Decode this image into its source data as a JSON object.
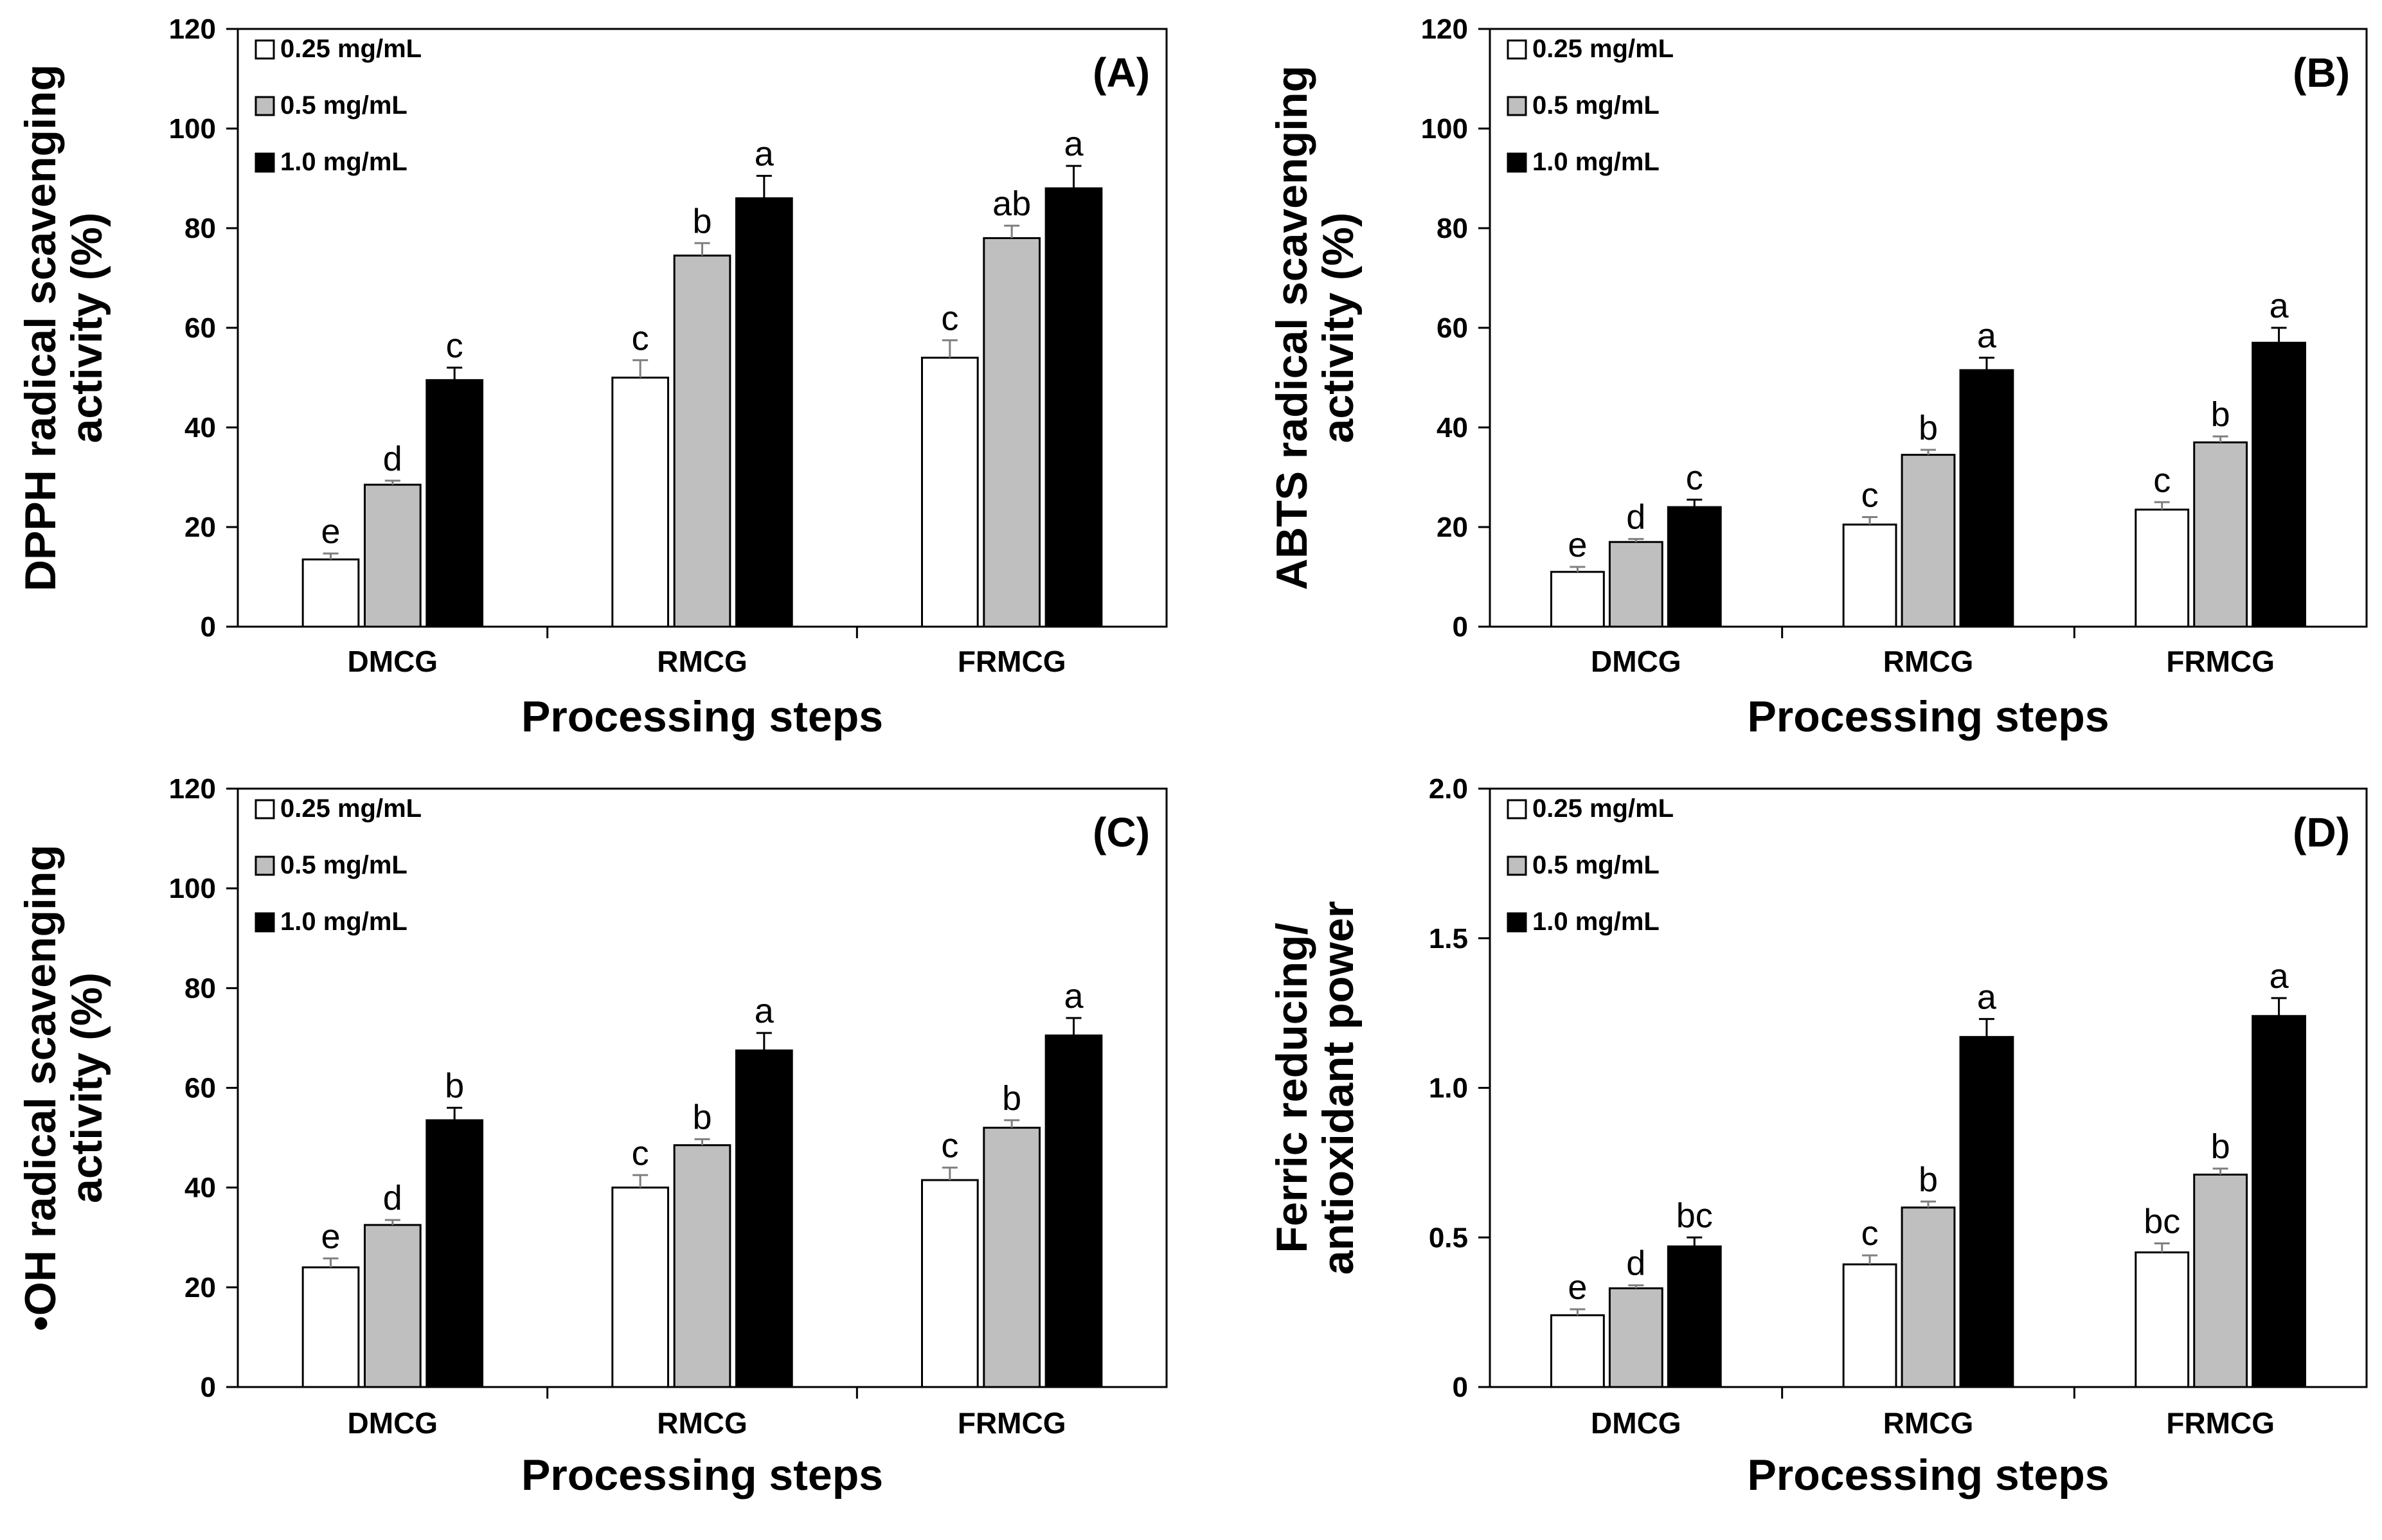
{
  "chart_data": [
    {
      "type": "bar",
      "panel_label": "(A)",
      "title": "",
      "xlabel": "Processing steps",
      "ylabel": [
        "DPPH radical scavenging",
        "activity (%)"
      ],
      "ylim": [
        0,
        120
      ],
      "yticks": [
        0,
        20,
        40,
        60,
        80,
        100,
        120
      ],
      "categories": [
        "DMCG",
        "RMCG",
        "FRMCG"
      ],
      "series": [
        {
          "name": "0.25 mg/mL",
          "color": "#ffffff",
          "values": [
            13.5,
            50.0,
            54.0
          ],
          "errors": [
            1.2,
            3.5,
            3.5
          ],
          "labels": [
            "e",
            "c",
            "c"
          ]
        },
        {
          "name": "0.5 mg/mL",
          "color": "#bfbfbf",
          "values": [
            28.5,
            74.5,
            78.0
          ],
          "errors": [
            0.8,
            2.5,
            2.5
          ],
          "labels": [
            "d",
            "b",
            "ab"
          ]
        },
        {
          "name": "1.0 mg/mL",
          "color": "#000000",
          "values": [
            49.5,
            86.0,
            88.0
          ],
          "errors": [
            2.5,
            4.5,
            4.5
          ],
          "labels": [
            "c",
            "a",
            "a"
          ]
        }
      ],
      "legend": "top-left"
    },
    {
      "type": "bar",
      "panel_label": "(B)",
      "title": "",
      "xlabel": "Processing steps",
      "ylabel": [
        "ABTS radical scavenging",
        "activity (%)"
      ],
      "ylim": [
        0,
        120
      ],
      "yticks": [
        0,
        20,
        40,
        60,
        80,
        100,
        120
      ],
      "categories": [
        "DMCG",
        "RMCG",
        "FRMCG"
      ],
      "series": [
        {
          "name": "0.25 mg/mL",
          "color": "#ffffff",
          "values": [
            11.0,
            20.5,
            23.5
          ],
          "errors": [
            1.0,
            1.5,
            1.5
          ],
          "labels": [
            "e",
            "c",
            "c"
          ]
        },
        {
          "name": "0.5 mg/mL",
          "color": "#bfbfbf",
          "values": [
            17.0,
            34.5,
            37.0
          ],
          "errors": [
            0.6,
            1.0,
            1.2
          ],
          "labels": [
            "d",
            "b",
            "b"
          ]
        },
        {
          "name": "1.0 mg/mL",
          "color": "#000000",
          "values": [
            24.0,
            51.5,
            57.0
          ],
          "errors": [
            1.5,
            2.5,
            3.0
          ],
          "labels": [
            "c",
            "a",
            "a"
          ]
        }
      ],
      "legend": "top-left"
    },
    {
      "type": "bar",
      "panel_label": "(C)",
      "title": "",
      "xlabel": "Processing steps",
      "ylabel": [
        "•OH radical scavenging",
        "activity (%)"
      ],
      "ylim": [
        0,
        120
      ],
      "yticks": [
        0,
        20,
        40,
        60,
        80,
        100,
        120
      ],
      "categories": [
        "DMCG",
        "RMCG",
        "FRMCG"
      ],
      "series": [
        {
          "name": "0.25 mg/mL",
          "color": "#ffffff",
          "values": [
            24.0,
            40.0,
            41.5
          ],
          "errors": [
            1.8,
            2.5,
            2.5
          ],
          "labels": [
            "e",
            "c",
            "c"
          ]
        },
        {
          "name": "0.5 mg/mL",
          "color": "#bfbfbf",
          "values": [
            32.5,
            48.5,
            52.0
          ],
          "errors": [
            1.0,
            1.2,
            1.5
          ],
          "labels": [
            "d",
            "b",
            "b"
          ]
        },
        {
          "name": "1.0 mg/mL",
          "color": "#000000",
          "values": [
            53.5,
            67.5,
            70.5
          ],
          "errors": [
            2.5,
            3.5,
            3.5
          ],
          "labels": [
            "b",
            "a",
            "a"
          ]
        }
      ],
      "legend": "top-left"
    },
    {
      "type": "bar",
      "panel_label": "(D)",
      "title": "",
      "xlabel": "Processing steps",
      "ylabel": [
        "Ferric reducing/",
        "antioxidant power"
      ],
      "ylim": [
        0,
        2.0
      ],
      "yticks": [
        0,
        0.5,
        1.0,
        1.5,
        2.0
      ],
      "ytick_labels": [
        "0",
        "0.5",
        "1.0",
        "1.5",
        "2.0"
      ],
      "categories": [
        "DMCG",
        "RMCG",
        "FRMCG"
      ],
      "series": [
        {
          "name": "0.25 mg/mL",
          "color": "#ffffff",
          "values": [
            0.24,
            0.41,
            0.45
          ],
          "errors": [
            0.02,
            0.03,
            0.03
          ],
          "labels": [
            "e",
            "c",
            "bc"
          ]
        },
        {
          "name": "0.5 mg/mL",
          "color": "#bfbfbf",
          "values": [
            0.33,
            0.6,
            0.71
          ],
          "errors": [
            0.01,
            0.02,
            0.02
          ],
          "labels": [
            "d",
            "b",
            "b"
          ]
        },
        {
          "name": "1.0 mg/mL",
          "color": "#000000",
          "values": [
            0.47,
            1.17,
            1.24
          ],
          "errors": [
            0.03,
            0.06,
            0.06
          ],
          "labels": [
            "bc",
            "a",
            "a"
          ]
        }
      ],
      "legend": "top-left"
    }
  ]
}
